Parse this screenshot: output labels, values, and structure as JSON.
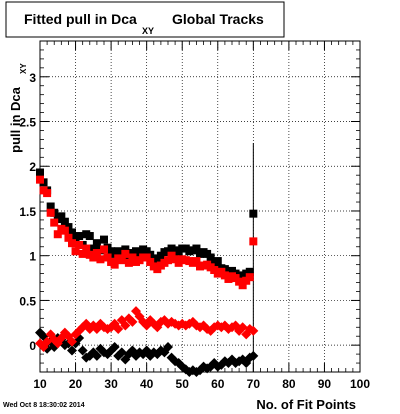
{
  "title": {
    "main": "Fitted pull in Dca",
    "subscript": "XY",
    "suffix": "Global Tracks"
  },
  "timestamp": "Wed Oct  8 18:30:02 2014",
  "colors": {
    "series1": "#000000",
    "series2": "#ff0000"
  },
  "chart_data": {
    "type": "scatter",
    "xlabel": "No. of Fit Points",
    "ylabel_main": "pull in Dca",
    "ylabel_sub": "XY",
    "xlim": [
      10,
      100
    ],
    "ylim": [
      -0.3,
      3.4
    ],
    "xticks": [
      10,
      20,
      30,
      40,
      50,
      60,
      70,
      80,
      90,
      100
    ],
    "yticks": [
      0,
      0.5,
      1,
      1.5,
      2,
      2.5,
      3
    ],
    "ytick_labels": [
      "0",
      "0.5",
      "1",
      "1.5",
      "2",
      "2.5",
      "3"
    ],
    "grid": true,
    "series": [
      {
        "marker": "square",
        "color": "#000000",
        "x": [
          10,
          11,
          12,
          13,
          14,
          15,
          16,
          17,
          18,
          19,
          20,
          21,
          22,
          23,
          24,
          25,
          26,
          27,
          28,
          29,
          30,
          31,
          32,
          33,
          34,
          35,
          36,
          37,
          38,
          39,
          40,
          41,
          42,
          43,
          44,
          45,
          46,
          47,
          48,
          49,
          50,
          51,
          52,
          53,
          54,
          55,
          56,
          57,
          58,
          59,
          60,
          61,
          62,
          63,
          64,
          65,
          66,
          67,
          68,
          69,
          70
        ],
        "y": [
          1.93,
          1.82,
          1.73,
          1.55,
          1.48,
          1.41,
          1.44,
          1.38,
          1.32,
          1.26,
          1.18,
          1.22,
          1.12,
          1.24,
          1.22,
          1.08,
          1.14,
          1.06,
          1.18,
          1.09,
          1.05,
          1.02,
          1.05,
          1.03,
          1.07,
          0.98,
          1.03,
          1.05,
          1.02,
          1.07,
          1.05,
          1.01,
          0.96,
          0.97,
          1.0,
          1.04,
          1.05,
          1.08,
          1.06,
          1.04,
          1.08,
          1.08,
          1.05,
          1.06,
          1.08,
          1.02,
          1.04,
          1.02,
          0.98,
          0.92,
          0.94,
          0.86,
          0.85,
          0.8,
          0.83,
          0.8,
          0.78,
          0.74,
          0.8,
          0.82,
          1.47
        ],
        "err_high": 2.26,
        "err_low": -0.3,
        "err_x": 70
      },
      {
        "marker": "square",
        "color": "#ff0000",
        "x": [
          10,
          11,
          12,
          13,
          14,
          15,
          16,
          17,
          18,
          19,
          20,
          21,
          22,
          23,
          24,
          25,
          26,
          27,
          28,
          29,
          30,
          31,
          32,
          33,
          34,
          35,
          36,
          37,
          38,
          39,
          40,
          41,
          42,
          43,
          44,
          45,
          46,
          47,
          48,
          49,
          50,
          51,
          52,
          53,
          54,
          55,
          56,
          57,
          58,
          59,
          60,
          61,
          62,
          63,
          64,
          65,
          66,
          67,
          68,
          69,
          70
        ],
        "y": [
          1.85,
          1.73,
          1.7,
          1.48,
          1.37,
          1.24,
          1.3,
          1.28,
          1.2,
          1.14,
          1.05,
          1.12,
          1.02,
          1.08,
          1.01,
          0.98,
          1.03,
          0.96,
          1.07,
          0.98,
          0.93,
          0.9,
          0.97,
          0.95,
          1.02,
          0.92,
          0.98,
          0.93,
          0.95,
          0.98,
          0.98,
          0.93,
          0.88,
          0.85,
          0.89,
          0.92,
          0.95,
          1.0,
          0.96,
          0.92,
          0.96,
          0.95,
          0.94,
          0.92,
          0.94,
          0.88,
          0.89,
          0.9,
          0.87,
          0.84,
          0.8,
          0.82,
          0.78,
          0.74,
          0.77,
          0.75,
          0.71,
          0.67,
          0.72,
          0.76,
          1.16
        ]
      },
      {
        "marker": "diamond",
        "color": "#000000",
        "x": [
          10,
          11,
          12,
          13,
          14,
          15,
          16,
          17,
          18,
          19,
          20,
          21,
          22,
          23,
          24,
          25,
          26,
          27,
          28,
          29,
          30,
          31,
          32,
          33,
          34,
          35,
          36,
          37,
          38,
          39,
          40,
          41,
          42,
          43,
          44,
          45,
          46,
          47,
          48,
          49,
          50,
          51,
          52,
          53,
          54,
          55,
          56,
          57,
          58,
          59,
          60,
          61,
          62,
          63,
          64,
          65,
          66,
          67,
          68,
          69,
          70
        ],
        "y": [
          0.14,
          0.1,
          -0.04,
          0.04,
          -0.02,
          0.08,
          0.06,
          0.0,
          0.02,
          -0.06,
          0.02,
          0.08,
          -0.06,
          -0.14,
          -0.12,
          -0.08,
          -0.12,
          -0.04,
          -0.08,
          -0.1,
          -0.06,
          -0.02,
          -0.12,
          -0.08,
          -0.16,
          -0.1,
          -0.06,
          -0.12,
          -0.08,
          -0.1,
          -0.06,
          -0.12,
          -0.08,
          -0.1,
          -0.06,
          -0.08,
          -0.02,
          -0.14,
          -0.18,
          -0.2,
          -0.24,
          -0.27,
          -0.3,
          -0.28,
          -0.3,
          -0.28,
          -0.24,
          -0.26,
          -0.24,
          -0.2,
          -0.24,
          -0.22,
          -0.18,
          -0.2,
          -0.16,
          -0.2,
          -0.18,
          -0.16,
          -0.2,
          -0.14,
          -0.12
        ]
      },
      {
        "marker": "diamond",
        "color": "#ff0000",
        "x": [
          10,
          11,
          12,
          13,
          14,
          15,
          16,
          17,
          18,
          19,
          20,
          21,
          22,
          23,
          24,
          25,
          26,
          27,
          28,
          29,
          30,
          31,
          32,
          33,
          34,
          35,
          36,
          37,
          38,
          39,
          40,
          41,
          42,
          43,
          44,
          45,
          46,
          47,
          48,
          49,
          50,
          51,
          52,
          53,
          54,
          55,
          56,
          57,
          58,
          59,
          60,
          61,
          62,
          63,
          64,
          65,
          66,
          67,
          68,
          69,
          70
        ],
        "y": [
          0.02,
          -0.02,
          0.04,
          0.12,
          0.06,
          0.02,
          0.08,
          0.14,
          0.1,
          0.04,
          0.12,
          0.16,
          0.2,
          0.24,
          0.18,
          0.22,
          0.18,
          0.24,
          0.2,
          0.18,
          0.2,
          0.24,
          0.18,
          0.28,
          0.22,
          0.3,
          0.26,
          0.38,
          0.32,
          0.26,
          0.22,
          0.28,
          0.24,
          0.2,
          0.26,
          0.28,
          0.24,
          0.26,
          0.24,
          0.22,
          0.24,
          0.22,
          0.24,
          0.26,
          0.22,
          0.2,
          0.22,
          0.18,
          0.16,
          0.2,
          0.22,
          0.2,
          0.22,
          0.18,
          0.2,
          0.22,
          0.16,
          0.2,
          0.12,
          0.18,
          0.16
        ]
      }
    ]
  }
}
